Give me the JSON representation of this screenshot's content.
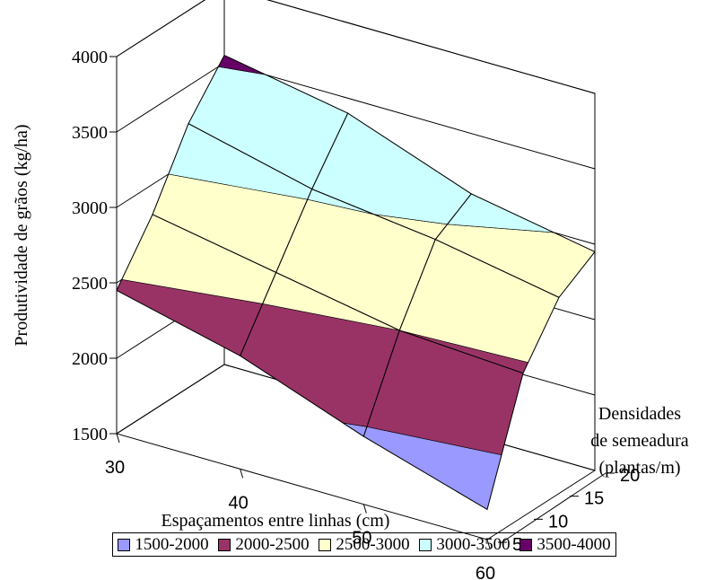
{
  "chart_data": {
    "type": "surface3d",
    "ylabel": "Produtividade de grãos (kg/ha)",
    "xlabel": "Espaçamentos entre linhas (cm)",
    "zlabel_lines": [
      "Densidades",
      "de semeadura",
      "(plantas/m)"
    ],
    "x": [
      30,
      40,
      50,
      60
    ],
    "depth": [
      5,
      10,
      15,
      20
    ],
    "ylim": [
      1500,
      4000
    ],
    "yticks": [
      1500,
      2000,
      2500,
      3000,
      3500,
      4000
    ],
    "colors": {
      "1500-2000": "#9999ff",
      "2000-2500": "#993366",
      "2500-3000": "#ffffcc",
      "3000-3500": "#ccffff",
      "3500-4000": "#660066"
    },
    "surface": [
      {
        "density": 5,
        "values": [
          2450,
          2250,
          1950,
          1700
        ]
      },
      {
        "density": 10,
        "values": [
          2800,
          2650,
          2500,
          2450
        ]
      },
      {
        "density": 15,
        "values": [
          3250,
          3050,
          2950,
          2800
        ]
      },
      {
        "density": 20,
        "values": [
          3550,
          3400,
          3100,
          2950
        ]
      }
    ],
    "legend": [
      {
        "label": "1500-2000",
        "color": "#9999ff"
      },
      {
        "label": "2000-2500",
        "color": "#993366"
      },
      {
        "label": "2500-3000",
        "color": "#ffffcc"
      },
      {
        "label": "3000-3500",
        "color": "#ccffff"
      },
      {
        "label": "3500-4000",
        "color": "#660066"
      }
    ]
  }
}
